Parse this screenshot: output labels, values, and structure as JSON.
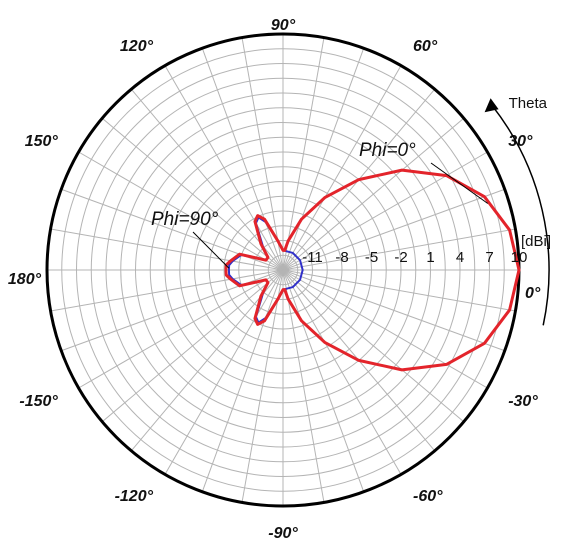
{
  "chart_data": {
    "type": "polar-line",
    "radial_unit": "[dBi]",
    "radial_ticks": [
      "-11",
      "-8",
      "-5",
      "-2",
      "1",
      "4",
      "7",
      "10"
    ],
    "angle_labels": [
      {
        "deg": 0,
        "text": "0°"
      },
      {
        "deg": 30,
        "text": "30°"
      },
      {
        "deg": 60,
        "text": "60°"
      },
      {
        "deg": 90,
        "text": "90°"
      },
      {
        "deg": 120,
        "text": "120°"
      },
      {
        "deg": 150,
        "text": "150°"
      },
      {
        "deg": 180,
        "text": "180°"
      },
      {
        "deg": -150,
        "text": "-150°"
      },
      {
        "deg": -120,
        "text": "-120°"
      },
      {
        "deg": -90,
        "text": "-90°"
      },
      {
        "deg": -60,
        "text": "-60°"
      },
      {
        "deg": -30,
        "text": "-30°"
      }
    ],
    "theta_label": "Theta",
    "series": [
      {
        "name": "Phi=0°",
        "color": "#e3242b",
        "points": [
          [
            0,
            10
          ],
          [
            10,
            9.4
          ],
          [
            20,
            7.8
          ],
          [
            30,
            5.2
          ],
          [
            40,
            1.8
          ],
          [
            50,
            -2
          ],
          [
            60,
            -5.5
          ],
          [
            70,
            -8.5
          ],
          [
            80,
            -11
          ],
          [
            85,
            -12
          ],
          [
            90,
            -12
          ],
          [
            100,
            -11
          ],
          [
            110,
            -8.5
          ],
          [
            115,
            -7.9
          ],
          [
            120,
            -8.3
          ],
          [
            130,
            -10.5
          ],
          [
            140,
            -12
          ],
          [
            150,
            -12
          ],
          [
            160,
            -9.3
          ],
          [
            170,
            -8.6
          ],
          [
            175,
            -8.2
          ],
          [
            180,
            -8.2
          ],
          [
            185,
            -8.2
          ],
          [
            190,
            -8.6
          ],
          [
            200,
            -9.3
          ],
          [
            210,
            -12
          ],
          [
            220,
            -12
          ],
          [
            230,
            -10.5
          ],
          [
            240,
            -8.3
          ],
          [
            245,
            -7.9
          ],
          [
            250,
            -8.5
          ],
          [
            260,
            -11
          ],
          [
            270,
            -12
          ],
          [
            275,
            -12
          ],
          [
            280,
            -11
          ],
          [
            290,
            -8.5
          ],
          [
            300,
            -5.5
          ],
          [
            310,
            -2
          ],
          [
            320,
            1.8
          ],
          [
            330,
            5.2
          ],
          [
            340,
            7.8
          ],
          [
            350,
            9.4
          ],
          [
            360,
            10
          ]
        ]
      },
      {
        "name": "Phi=90°",
        "color": "#3030c8",
        "points": [
          [
            0,
            -12
          ],
          [
            30,
            -12
          ],
          [
            60,
            -12
          ],
          [
            90,
            -12
          ],
          [
            100,
            -11
          ],
          [
            110,
            -8.8
          ],
          [
            115,
            -8.1
          ],
          [
            120,
            -8.5
          ],
          [
            130,
            -10.8
          ],
          [
            140,
            -12
          ],
          [
            150,
            -12
          ],
          [
            160,
            -9.5
          ],
          [
            170,
            -8.8
          ],
          [
            175,
            -8.5
          ],
          [
            180,
            -8.5
          ],
          [
            185,
            -8.5
          ],
          [
            190,
            -8.8
          ],
          [
            200,
            -9.5
          ],
          [
            210,
            -12
          ],
          [
            220,
            -12
          ],
          [
            230,
            -10.8
          ],
          [
            240,
            -8.5
          ],
          [
            245,
            -8.1
          ],
          [
            250,
            -8.8
          ],
          [
            260,
            -11
          ],
          [
            270,
            -12
          ],
          [
            300,
            -12
          ],
          [
            330,
            -12
          ],
          [
            360,
            -12
          ]
        ]
      }
    ],
    "annotations": [
      {
        "series": "Phi=0°",
        "text": "Phi=0°"
      },
      {
        "series": "Phi=90°",
        "text": "Phi=90°"
      }
    ]
  }
}
